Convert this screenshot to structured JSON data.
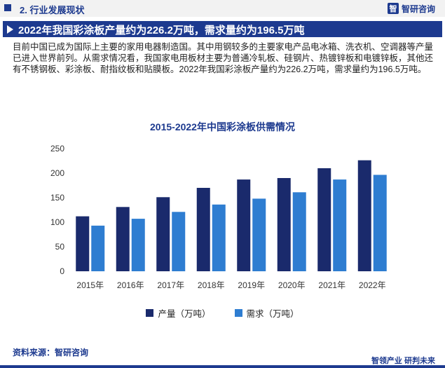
{
  "header": {
    "section": "2. 行业发展现状",
    "logo_mark": "智",
    "logo_text": "智研咨询"
  },
  "banner": {
    "title": "2022年我国彩涂板产量约为226.2万吨，需求量约为196.5万吨"
  },
  "paragraph": "目前中国已成为国际上主要的家用电器制造国。其中用钢较多的主要家电产品电冰箱、洗衣机、空调器等产量已进入世界前列。从需求情况看，我国家电用板材主要为普通冷轧板、硅钢片、热镀锌板和电镀锌板，其他还有不锈钢板、彩涂板、耐指纹板和贴膜板。2022年我国彩涂板产量约为226.2万吨，需求量约为196.5万吨。",
  "chart_data": {
    "type": "bar",
    "title": "2015-2022年中国彩涂板供需情况",
    "categories": [
      "2015年",
      "2016年",
      "2017年",
      "2018年",
      "2019年",
      "2020年",
      "2021年",
      "2022年"
    ],
    "series": [
      {
        "name": "产量（万吨）",
        "color": "#1a2a6c",
        "values": [
          112,
          131,
          151,
          170,
          187,
          190,
          210,
          226.2
        ]
      },
      {
        "name": "需求（万吨）",
        "color": "#2e7dd1",
        "values": [
          93,
          107,
          121,
          136,
          148,
          161,
          187,
          196.5
        ]
      }
    ],
    "yticks": [
      0,
      50,
      100,
      150,
      200,
      250
    ],
    "ylim": [
      0,
      250
    ],
    "grid": false,
    "legend_position": "bottom"
  },
  "footer": {
    "source": "资料来源：智研咨询",
    "slogan": "智领产业  研判未来"
  }
}
